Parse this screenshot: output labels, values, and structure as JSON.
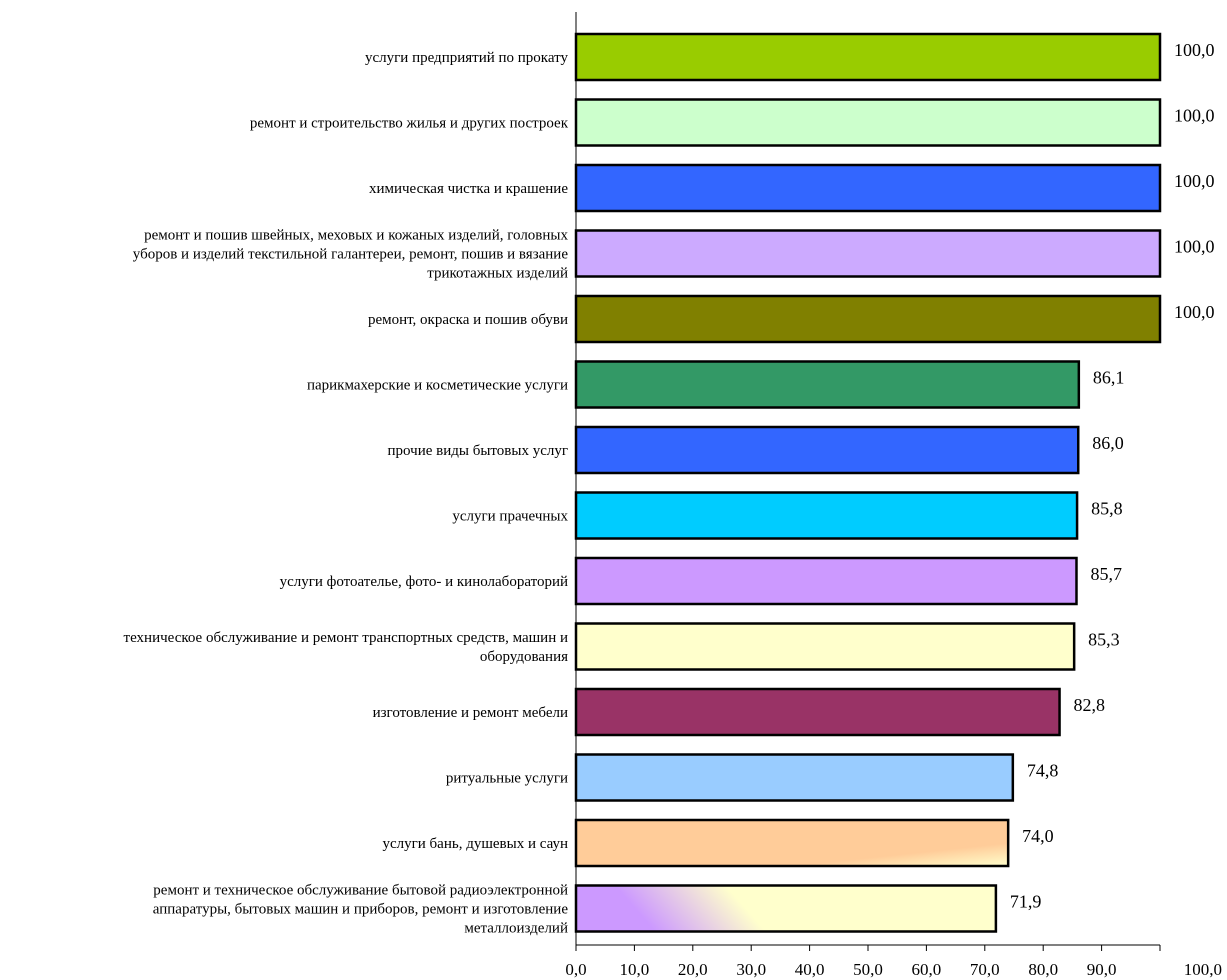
{
  "chart_data": {
    "type": "bar",
    "orientation": "horizontal",
    "title": "",
    "xlabel": "",
    "ylabel": "",
    "xlim": [
      0,
      100
    ],
    "grid": false,
    "legend": "none",
    "categories": [
      [
        "услуги предприятий по прокату"
      ],
      [
        "ремонт и строительство жилья и других построек"
      ],
      [
        "химическая чистка и крашение"
      ],
      [
        "ремонт и пошив швейных, меховых и кожаных изделий, головных",
        "уборов и изделий текстильной галантереи, ремонт, пошив и вязание",
        "трикотажных изделий"
      ],
      [
        "ремонт, окраска и пошив обуви"
      ],
      [
        "парикмахерские и косметические услуги"
      ],
      [
        "прочие виды бытовых услуг"
      ],
      [
        "услуги прачечных"
      ],
      [
        "услуги фотоателье, фото- и кинолабораторий"
      ],
      [
        "техническое обслуживание и ремонт транспортных средств, машин и",
        "оборудования"
      ],
      [
        "изготовление и ремонт мебели"
      ],
      [
        "ритуальные услуги"
      ],
      [
        "услуги бань, душевых и саун"
      ],
      [
        "ремонт и техническое обслуживание бытовой радиоэлектронной",
        "аппаратуры, бытовых машин и приборов, ремонт и изготовление",
        "металлоизделий"
      ]
    ],
    "values": [
      100.0,
      100.0,
      100.0,
      100.0,
      100.0,
      86.1,
      86.0,
      85.8,
      85.7,
      85.3,
      82.8,
      74.8,
      74.0,
      71.9
    ],
    "value_labels": [
      "100,0",
      "100,0",
      "100,0",
      "100,0",
      "100,0",
      "86,1",
      "86,0",
      "85,8",
      "85,7",
      "85,3",
      "82,8",
      "74,8",
      "74,0",
      "71,9"
    ],
    "colors": [
      "#99cc00",
      "#ccffcc",
      "#3366ff",
      "#ccaaff",
      "#808000",
      "#339966",
      "#3366ff",
      "#00ccff",
      "#cc99ff",
      "#ffffcc",
      "#993366",
      "#99ccff",
      "#ffcc99",
      "#ffffcc"
    ],
    "x_ticks": [
      "0,0",
      "10,0",
      "20,0",
      "30,0",
      "40,0",
      "50,0",
      "60,0",
      "70,0",
      "80,0",
      "90,0",
      "100,0"
    ]
  }
}
